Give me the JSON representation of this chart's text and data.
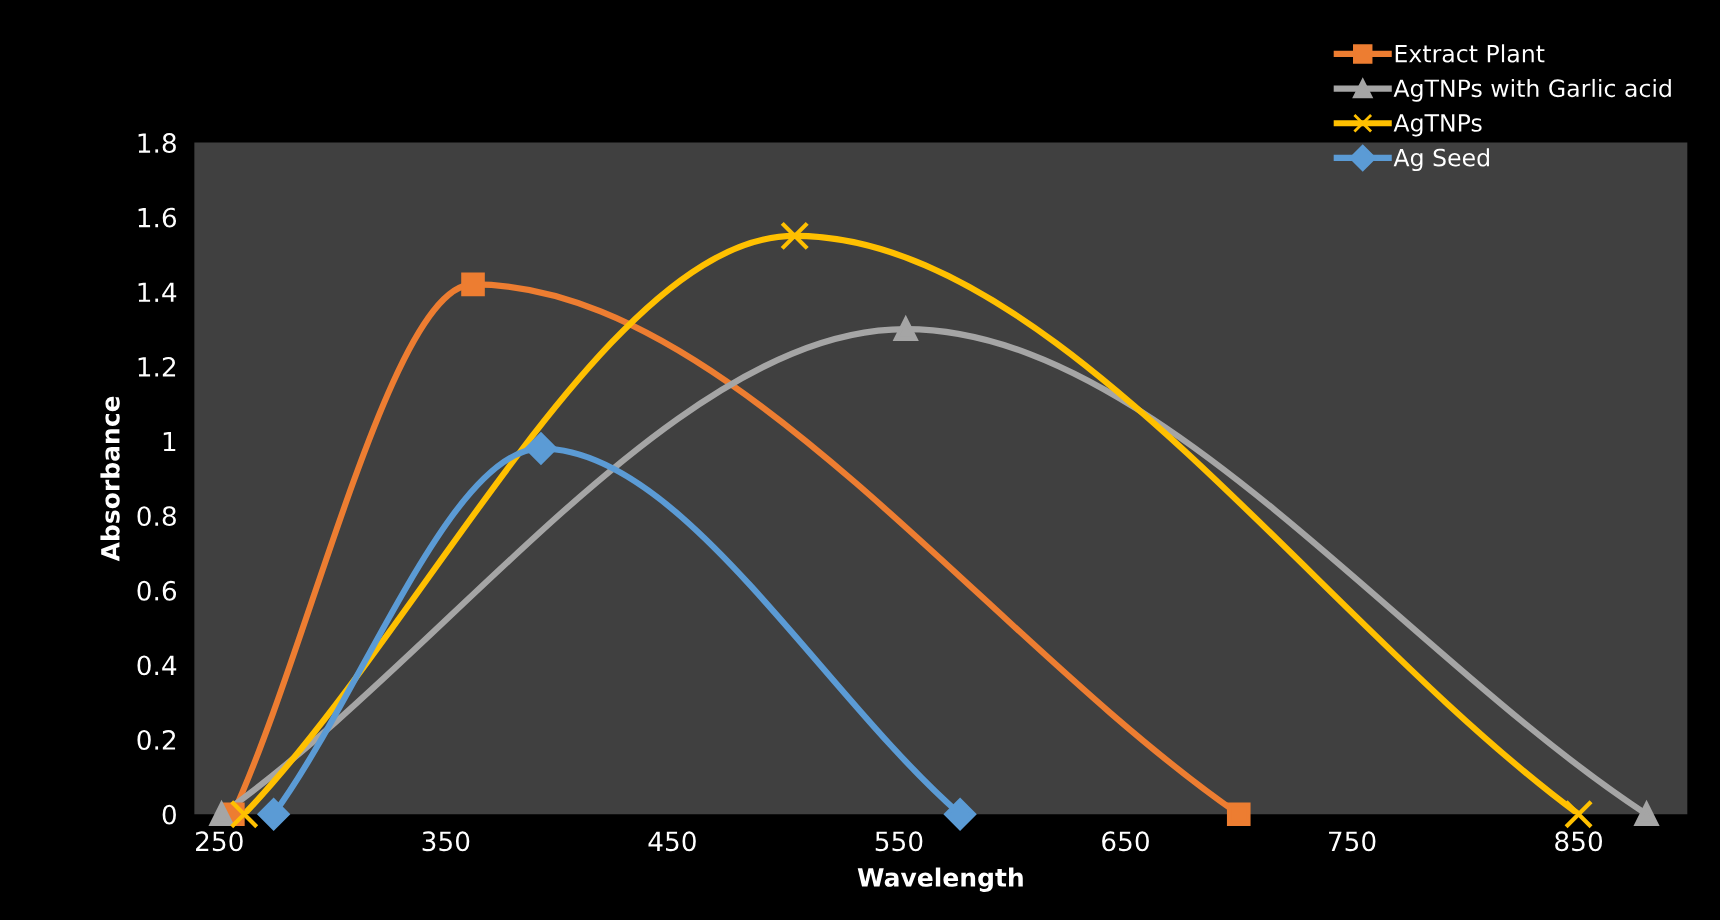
{
  "chart_data": {
    "type": "line",
    "xlabel": "Wavelength",
    "ylabel": "Absorbance",
    "xlim": [
      239,
      898
    ],
    "xticks": [
      250,
      350,
      450,
      550,
      650,
      750,
      850
    ],
    "ylim": [
      0,
      1.8
    ],
    "yticks": [
      0,
      0.2,
      0.4,
      0.6,
      0.8,
      1,
      1.2,
      1.4,
      1.6,
      1.8
    ],
    "grid": false,
    "legend": "top right",
    "series": [
      {
        "name": "Extract Plant",
        "color": "#ed7d31",
        "marker": "square",
        "x": [
          256,
          362,
          700
        ],
        "values": [
          0,
          1.42,
          0
        ]
      },
      {
        "name": "AgTNPs with Garlic acid",
        "color": "#a5a5a5",
        "marker": "triangle",
        "x": [
          251,
          553,
          880
        ],
        "values": [
          0,
          1.3,
          0
        ]
      },
      {
        "name": "AgTNPs",
        "color": "#ffc000",
        "marker": "cross",
        "x": [
          261,
          504,
          850
        ],
        "values": [
          0,
          1.55,
          0
        ]
      },
      {
        "name": "Ag Seed",
        "color": "#5b9bd5",
        "marker": "diamond",
        "x": [
          274,
          392,
          577
        ],
        "values": [
          0,
          0.98,
          0
        ]
      }
    ]
  }
}
